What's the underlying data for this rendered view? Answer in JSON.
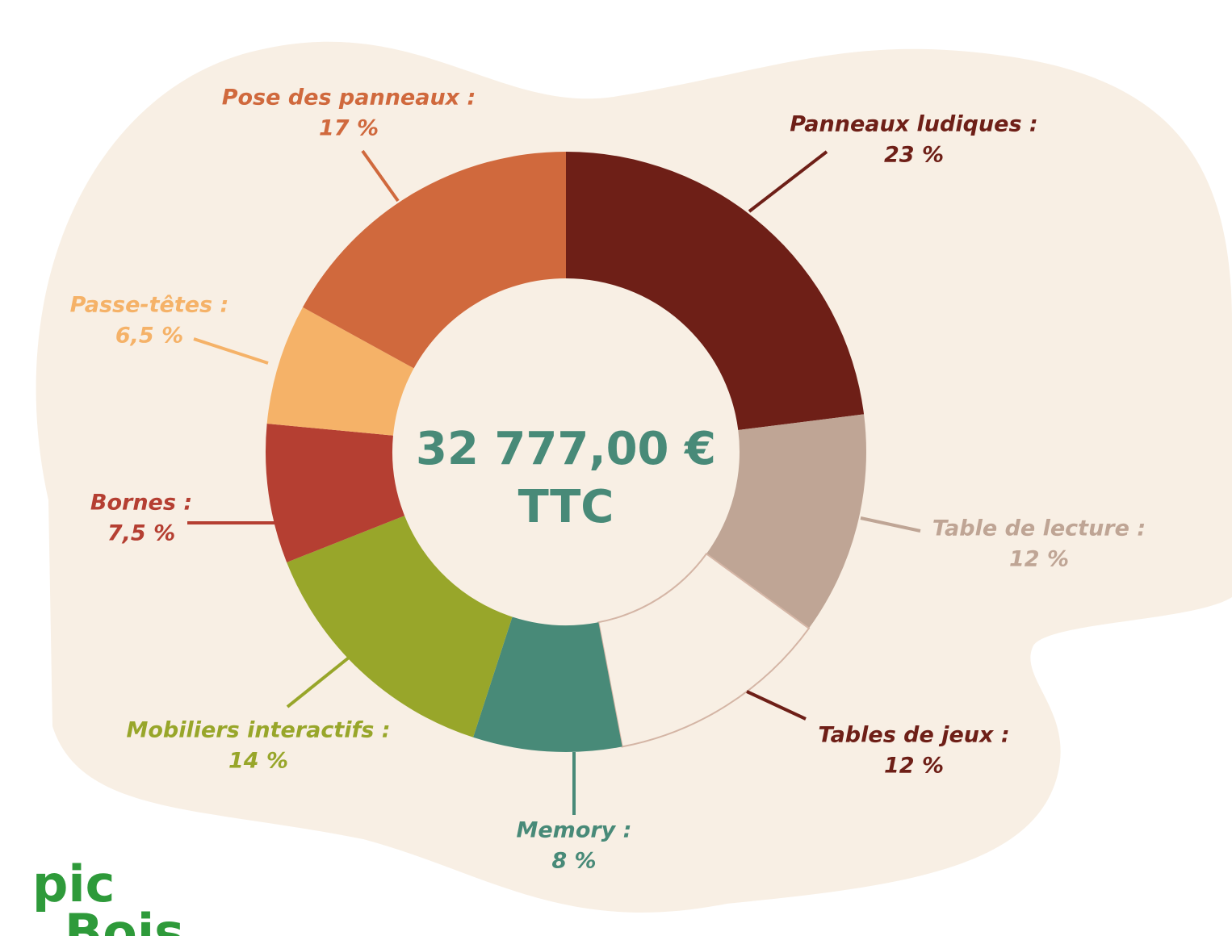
{
  "chart_data": {
    "type": "donut",
    "center_label": [
      "32 777,00 €",
      "TTC"
    ],
    "categories": [
      "Panneaux ludiques :",
      "Table de lecture :",
      "Tables de jeux :",
      "Memory :",
      "Mobiliers interactifs :",
      "Bornes :",
      "Passe-têtes :",
      "Pose des panneaux :"
    ],
    "values": [
      23,
      12,
      12,
      8,
      14,
      7.5,
      6.5,
      17
    ],
    "value_labels": [
      "23 %",
      "12 %",
      "12 %",
      "8 %",
      "14 %",
      "7,5 %",
      "6,5 %",
      "17 %"
    ],
    "colors": [
      "#6e1f17",
      "#bfa595",
      "#f8efe4",
      "#488a78",
      "#98a62a",
      "#b53f32",
      "#f5b268",
      "#d0693d"
    ],
    "label_colors": [
      "#6e1f17",
      "#bfa595",
      "#6e1f17",
      "#488a78",
      "#98a62a",
      "#b53f32",
      "#f5b268",
      "#d0693d"
    ],
    "logo": [
      "pic",
      "Bois"
    ]
  }
}
